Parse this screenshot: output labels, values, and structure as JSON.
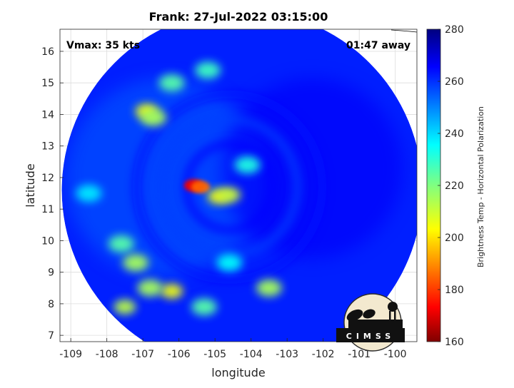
{
  "chart_data": {
    "type": "heatmap",
    "title": "Frank: 27-Jul-2022 03:15:00",
    "xlabel": "longitude",
    "ylabel": "latitude",
    "xlim": [
      -109.3,
      -99.4
    ],
    "ylim": [
      6.8,
      16.7
    ],
    "x_ticks": [
      "-109",
      "-108",
      "-107",
      "-106",
      "-105",
      "-104",
      "-103",
      "-102",
      "-101",
      "-100"
    ],
    "x_tick_values": [
      -109,
      -108,
      -107,
      -106,
      -105,
      -104,
      -103,
      -102,
      -101,
      -100
    ],
    "y_ticks": [
      "7",
      "8",
      "9",
      "10",
      "11",
      "12",
      "13",
      "14",
      "15",
      "16"
    ],
    "y_tick_values": [
      7,
      8,
      9,
      10,
      11,
      12,
      13,
      14,
      15,
      16
    ],
    "grid": true,
    "annotations": {
      "vmax": "Vmax: 35 kts",
      "time_away": "01:47 away"
    },
    "colorbar": {
      "label": "Brightness Temp - Horizontal Polarization",
      "min": 160,
      "max": 280,
      "ticks": [
        "280",
        "260",
        "240",
        "220",
        "200",
        "180",
        "160"
      ],
      "tick_values": [
        280,
        260,
        240,
        220,
        200,
        180,
        160
      ],
      "colormap": "jet"
    },
    "storm_center": {
      "lon": -104.6,
      "lat": 11.7
    },
    "swath": {
      "center_lon": -104.25,
      "center_lat": 11.6,
      "radius_deg": 5.0
    },
    "features": [
      {
        "lon": -105.6,
        "lat": 11.75,
        "value": 172
      },
      {
        "lon": -105.4,
        "lat": 11.7,
        "value": 185
      },
      {
        "lon": -104.9,
        "lat": 11.4,
        "value": 205
      },
      {
        "lon": -104.6,
        "lat": 11.45,
        "value": 210
      },
      {
        "lon": -106.9,
        "lat": 14.1,
        "value": 205
      },
      {
        "lon": -106.7,
        "lat": 13.9,
        "value": 215
      },
      {
        "lon": -106.2,
        "lat": 15.0,
        "value": 225
      },
      {
        "lon": -105.2,
        "lat": 15.4,
        "value": 228
      },
      {
        "lon": -107.6,
        "lat": 9.9,
        "value": 225
      },
      {
        "lon": -107.2,
        "lat": 9.3,
        "value": 215
      },
      {
        "lon": -106.2,
        "lat": 8.4,
        "value": 205
      },
      {
        "lon": -106.8,
        "lat": 8.5,
        "value": 215
      },
      {
        "lon": -107.5,
        "lat": 7.9,
        "value": 212
      },
      {
        "lon": -105.3,
        "lat": 7.9,
        "value": 225
      },
      {
        "lon": -103.5,
        "lat": 8.5,
        "value": 215
      },
      {
        "lon": -104.1,
        "lat": 12.4,
        "value": 232
      },
      {
        "lon": -104.6,
        "lat": 9.3,
        "value": 235
      },
      {
        "lon": -108.5,
        "lat": 11.5,
        "value": 238
      }
    ]
  },
  "logo": {
    "text": "CIMSS"
  }
}
